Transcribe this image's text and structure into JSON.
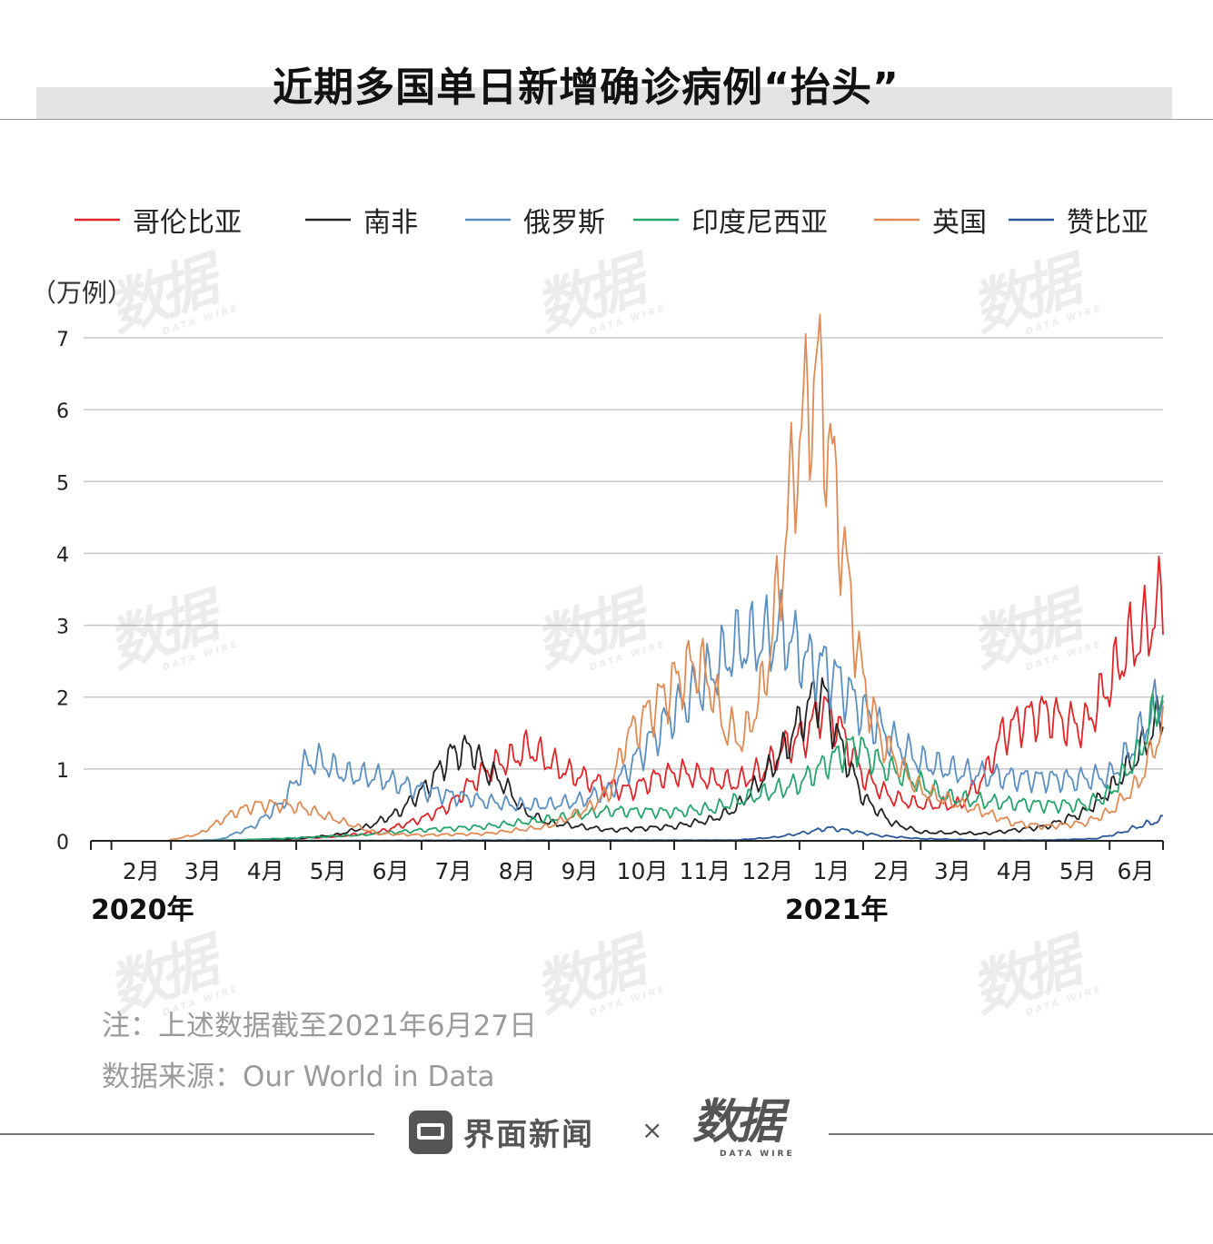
{
  "title": "近期多国单日新增确诊病例“抬头”",
  "chart_data": {
    "type": "line",
    "ylabel": "（万例）",
    "ylim": [
      0,
      7
    ],
    "yticks": [
      0,
      1,
      2,
      3,
      4,
      5,
      6,
      7
    ],
    "xlim": [
      "2020-01-22",
      "2021-06-27"
    ],
    "x_tick_labels": [
      {
        "date": "2020-02-01",
        "label": "2月"
      },
      {
        "date": "2020-03-01",
        "label": "3月"
      },
      {
        "date": "2020-04-01",
        "label": "4月"
      },
      {
        "date": "2020-05-01",
        "label": "5月"
      },
      {
        "date": "2020-06-01",
        "label": "6月"
      },
      {
        "date": "2020-07-01",
        "label": "7月"
      },
      {
        "date": "2020-08-01",
        "label": "8月"
      },
      {
        "date": "2020-09-01",
        "label": "9月"
      },
      {
        "date": "2020-10-01",
        "label": "10月"
      },
      {
        "date": "2020-11-01",
        "label": "11月"
      },
      {
        "date": "2020-12-01",
        "label": "12月"
      },
      {
        "date": "2021-01-01",
        "label": "1月"
      },
      {
        "date": "2021-02-01",
        "label": "2月"
      },
      {
        "date": "2021-03-01",
        "label": "3月"
      },
      {
        "date": "2021-04-01",
        "label": "4月"
      },
      {
        "date": "2021-05-01",
        "label": "5月"
      },
      {
        "date": "2021-06-01",
        "label": "6月"
      }
    ],
    "year_labels": [
      {
        "date": "2020-01-22",
        "label": "2020年"
      },
      {
        "date": "2021-01-01",
        "label": "2021年"
      }
    ],
    "grid": true,
    "legend_position": "top",
    "series": [
      {
        "name": "哥伦比亚",
        "color": "#e0262a",
        "points": [
          [
            "2020-03-06",
            0
          ],
          [
            "2020-04-01",
            0.01
          ],
          [
            "2020-05-01",
            0.03
          ],
          [
            "2020-05-20",
            0.06
          ],
          [
            "2020-06-10",
            0.12
          ],
          [
            "2020-06-25",
            0.25
          ],
          [
            "2020-07-05",
            0.35
          ],
          [
            "2020-07-15",
            0.5
          ],
          [
            "2020-07-25",
            0.8
          ],
          [
            "2020-08-05",
            1.05
          ],
          [
            "2020-08-15",
            1.15
          ],
          [
            "2020-08-22",
            1.3
          ],
          [
            "2020-09-01",
            1.1
          ],
          [
            "2020-09-10",
            0.95
          ],
          [
            "2020-09-25",
            0.8
          ],
          [
            "2020-10-10",
            0.7
          ],
          [
            "2020-10-25",
            0.9
          ],
          [
            "2020-11-05",
            0.95
          ],
          [
            "2020-11-20",
            0.85
          ],
          [
            "2020-12-01",
            0.8
          ],
          [
            "2020-12-15",
            1.0
          ],
          [
            "2020-12-25",
            1.3
          ],
          [
            "2021-01-05",
            1.5
          ],
          [
            "2021-01-12",
            1.9
          ],
          [
            "2021-01-20",
            1.6
          ],
          [
            "2021-02-01",
            0.9
          ],
          [
            "2021-02-15",
            0.6
          ],
          [
            "2021-03-01",
            0.5
          ],
          [
            "2021-03-20",
            0.5
          ],
          [
            "2021-04-01",
            0.9
          ],
          [
            "2021-04-10",
            1.5
          ],
          [
            "2021-04-20",
            1.7
          ],
          [
            "2021-05-01",
            1.8
          ],
          [
            "2021-05-10",
            1.65
          ],
          [
            "2021-05-20",
            1.6
          ],
          [
            "2021-06-01",
            2.2
          ],
          [
            "2021-06-10",
            2.7
          ],
          [
            "2021-06-18",
            2.9
          ],
          [
            "2021-06-27",
            3.35
          ]
        ]
      },
      {
        "name": "南非",
        "color": "#222222",
        "points": [
          [
            "2020-03-05",
            0
          ],
          [
            "2020-04-01",
            0.01
          ],
          [
            "2020-05-01",
            0.03
          ],
          [
            "2020-05-20",
            0.08
          ],
          [
            "2020-06-05",
            0.2
          ],
          [
            "2020-06-20",
            0.4
          ],
          [
            "2020-07-05",
            0.8
          ],
          [
            "2020-07-15",
            1.2
          ],
          [
            "2020-07-25",
            1.3
          ],
          [
            "2020-08-01",
            1.0
          ],
          [
            "2020-08-10",
            0.8
          ],
          [
            "2020-08-20",
            0.4
          ],
          [
            "2020-09-01",
            0.25
          ],
          [
            "2020-10-01",
            0.15
          ],
          [
            "2020-11-01",
            0.2
          ],
          [
            "2020-11-20",
            0.3
          ],
          [
            "2020-12-01",
            0.45
          ],
          [
            "2020-12-15",
            0.9
          ],
          [
            "2020-12-25",
            1.3
          ],
          [
            "2021-01-06",
            1.9
          ],
          [
            "2021-01-12",
            2.1
          ],
          [
            "2021-01-20",
            1.4
          ],
          [
            "2021-02-01",
            0.6
          ],
          [
            "2021-02-15",
            0.25
          ],
          [
            "2021-03-01",
            0.12
          ],
          [
            "2021-04-01",
            0.1
          ],
          [
            "2021-05-01",
            0.2
          ],
          [
            "2021-05-20",
            0.4
          ],
          [
            "2021-06-01",
            0.7
          ],
          [
            "2021-06-15",
            1.2
          ],
          [
            "2021-06-27",
            1.8
          ]
        ]
      },
      {
        "name": "俄罗斯",
        "color": "#5b8fc1",
        "points": [
          [
            "2020-03-10",
            0
          ],
          [
            "2020-03-25",
            0.02
          ],
          [
            "2020-04-10",
            0.2
          ],
          [
            "2020-04-25",
            0.55
          ],
          [
            "2020-05-05",
            1.05
          ],
          [
            "2020-05-11",
            1.13
          ],
          [
            "2020-05-25",
            0.92
          ],
          [
            "2020-06-10",
            0.88
          ],
          [
            "2020-06-25",
            0.75
          ],
          [
            "2020-07-10",
            0.66
          ],
          [
            "2020-08-01",
            0.55
          ],
          [
            "2020-08-20",
            0.49
          ],
          [
            "2020-09-01",
            0.5
          ],
          [
            "2020-09-15",
            0.55
          ],
          [
            "2020-10-01",
            0.7
          ],
          [
            "2020-10-15",
            1.2
          ],
          [
            "2020-11-01",
            1.8
          ],
          [
            "2020-11-15",
            2.2
          ],
          [
            "2020-12-01",
            2.7
          ],
          [
            "2020-12-15",
            2.8
          ],
          [
            "2020-12-24",
            2.9
          ],
          [
            "2021-01-05",
            2.5
          ],
          [
            "2021-01-15",
            2.4
          ],
          [
            "2021-02-01",
            1.8
          ],
          [
            "2021-02-15",
            1.4
          ],
          [
            "2021-03-01",
            1.1
          ],
          [
            "2021-03-20",
            0.95
          ],
          [
            "2021-04-15",
            0.88
          ],
          [
            "2021-05-15",
            0.85
          ],
          [
            "2021-06-01",
            0.9
          ],
          [
            "2021-06-10",
            1.2
          ],
          [
            "2021-06-20",
            1.7
          ],
          [
            "2021-06-27",
            2.05
          ]
        ]
      },
      {
        "name": "印度尼西亚",
        "color": "#25a56b",
        "points": [
          [
            "2020-03-02",
            0
          ],
          [
            "2020-04-01",
            0.01
          ],
          [
            "2020-05-01",
            0.04
          ],
          [
            "2020-06-01",
            0.08
          ],
          [
            "2020-07-01",
            0.15
          ],
          [
            "2020-08-01",
            0.2
          ],
          [
            "2020-09-01",
            0.3
          ],
          [
            "2020-10-01",
            0.42
          ],
          [
            "2020-11-01",
            0.4
          ],
          [
            "2020-11-20",
            0.45
          ],
          [
            "2020-12-01",
            0.55
          ],
          [
            "2020-12-20",
            0.7
          ],
          [
            "2021-01-01",
            0.8
          ],
          [
            "2021-01-15",
            1.1
          ],
          [
            "2021-01-28",
            1.35
          ],
          [
            "2021-02-10",
            1.05
          ],
          [
            "2021-02-25",
            0.85
          ],
          [
            "2021-03-15",
            0.6
          ],
          [
            "2021-04-01",
            0.55
          ],
          [
            "2021-05-01",
            0.5
          ],
          [
            "2021-05-20",
            0.5
          ],
          [
            "2021-06-01",
            0.65
          ],
          [
            "2021-06-15",
            1.2
          ],
          [
            "2021-06-27",
            2.1
          ]
        ]
      },
      {
        "name": "英国",
        "color": "#e08b55",
        "points": [
          [
            "2020-02-28",
            0
          ],
          [
            "2020-03-15",
            0.1
          ],
          [
            "2020-04-01",
            0.4
          ],
          [
            "2020-04-12",
            0.5
          ],
          [
            "2020-04-25",
            0.5
          ],
          [
            "2020-05-05",
            0.45
          ],
          [
            "2020-05-20",
            0.3
          ],
          [
            "2020-06-10",
            0.1
          ],
          [
            "2020-07-01",
            0.08
          ],
          [
            "2020-08-01",
            0.1
          ],
          [
            "2020-09-01",
            0.2
          ],
          [
            "2020-09-20",
            0.45
          ],
          [
            "2020-10-01",
            0.7
          ],
          [
            "2020-10-08",
            1.4
          ],
          [
            "2020-10-20",
            1.8
          ],
          [
            "2020-11-01",
            2.2
          ],
          [
            "2020-11-12",
            2.5
          ],
          [
            "2020-11-20",
            2.1
          ],
          [
            "2020-11-25",
            1.6
          ],
          [
            "2020-12-05",
            1.4
          ],
          [
            "2020-12-15",
            2.2
          ],
          [
            "2020-12-22",
            3.5
          ],
          [
            "2020-12-30",
            5.3
          ],
          [
            "2021-01-06",
            6.2
          ],
          [
            "2021-01-10",
            6.5
          ],
          [
            "2021-01-18",
            5.0
          ],
          [
            "2021-01-25",
            3.5
          ],
          [
            "2021-02-01",
            2.2
          ],
          [
            "2021-02-10",
            1.4
          ],
          [
            "2021-02-20",
            1.0
          ],
          [
            "2021-03-01",
            0.7
          ],
          [
            "2021-03-15",
            0.55
          ],
          [
            "2021-04-01",
            0.4
          ],
          [
            "2021-04-15",
            0.25
          ],
          [
            "2021-05-01",
            0.2
          ],
          [
            "2021-05-20",
            0.25
          ],
          [
            "2021-06-01",
            0.4
          ],
          [
            "2021-06-15",
            0.8
          ],
          [
            "2021-06-27",
            1.6
          ]
        ]
      },
      {
        "name": "赞比亚",
        "color": "#2a5799",
        "points": [
          [
            "2020-03-18",
            0
          ],
          [
            "2020-06-01",
            0.005
          ],
          [
            "2020-09-01",
            0.01
          ],
          [
            "2020-12-01",
            0.01
          ],
          [
            "2020-12-20",
            0.05
          ],
          [
            "2021-01-05",
            0.12
          ],
          [
            "2021-01-15",
            0.18
          ],
          [
            "2021-01-25",
            0.14
          ],
          [
            "2021-02-10",
            0.07
          ],
          [
            "2021-03-01",
            0.03
          ],
          [
            "2021-04-01",
            0.01
          ],
          [
            "2021-05-01",
            0.01
          ],
          [
            "2021-05-25",
            0.03
          ],
          [
            "2021-06-05",
            0.1
          ],
          [
            "2021-06-15",
            0.2
          ],
          [
            "2021-06-27",
            0.3
          ]
        ]
      }
    ]
  },
  "note": "注：上述数据截至2021年6月27日",
  "source": "数据来源：Our  World  in  Data",
  "brand": {
    "jiemian": "界面新闻",
    "times": "×",
    "datawire_cn": "数据",
    "datawire_en": "DATA WIRE"
  },
  "watermark": {
    "cn": "数据",
    "en": "DATA WIRE"
  }
}
